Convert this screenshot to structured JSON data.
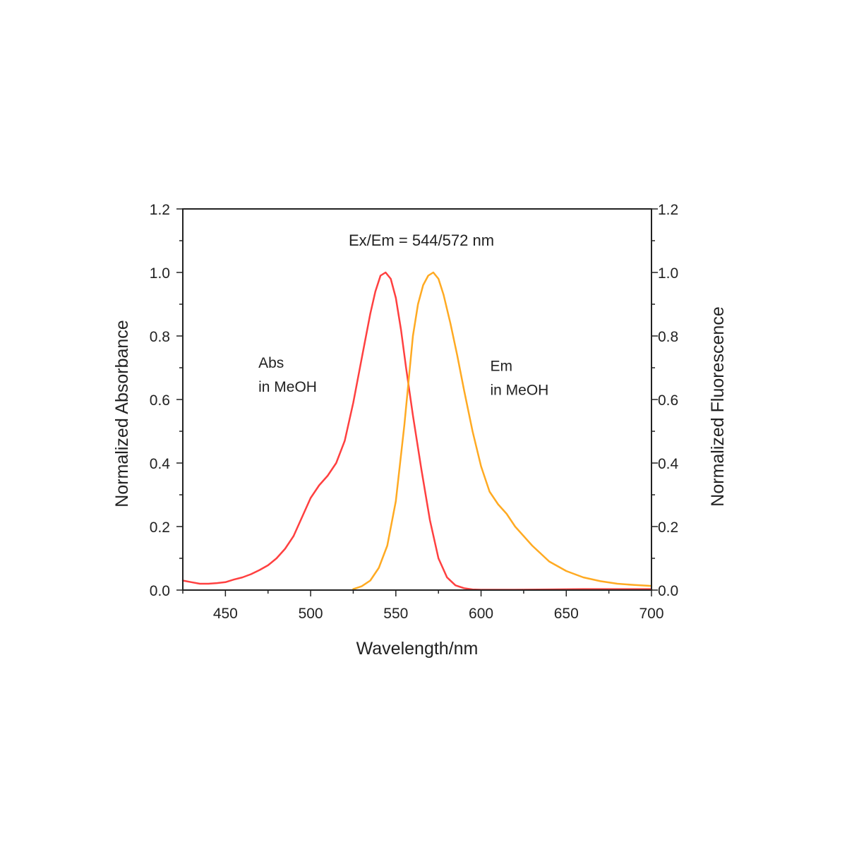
{
  "chart_data": {
    "type": "line",
    "title": "Ex/Em = 544/572 nm",
    "xlabel": "Wavelength/nm",
    "ylabel_left": "Normalized Absorbance",
    "ylabel_right": "Normalized Fluorescence",
    "xlim": [
      425,
      700
    ],
    "ylim": [
      0,
      1.2
    ],
    "x_ticks": [
      450,
      500,
      550,
      600,
      650,
      700
    ],
    "x_tick_labels": [
      "450",
      "500",
      "550",
      "600",
      "650",
      "700"
    ],
    "y_ticks": [
      0,
      0.2,
      0.4,
      0.6,
      0.8,
      1.0,
      1.2
    ],
    "y_tick_labels": [
      "0.0",
      "0.2",
      "0.4",
      "0.6",
      "0.8",
      "1.0",
      "1.2"
    ],
    "grid": false,
    "annotations": [
      {
        "lines": [
          "Abs",
          "in MeOH"
        ],
        "x": 488,
        "y": 0.7
      },
      {
        "lines": [
          "Em",
          "in MeOH"
        ],
        "x": 624,
        "y": 0.69
      }
    ],
    "series": [
      {
        "label": "Abs in MeOH",
        "axis": "left",
        "color": "#ff4040",
        "x": [
          425,
          430,
          435,
          440,
          445,
          450,
          455,
          460,
          465,
          470,
          475,
          480,
          485,
          490,
          495,
          500,
          505,
          510,
          515,
          520,
          525,
          530,
          535,
          538,
          541,
          544,
          547,
          550,
          553,
          556,
          560,
          565,
          570,
          575,
          580,
          585,
          590,
          595,
          600,
          610,
          620,
          640,
          660,
          680,
          700
        ],
        "y": [
          0.03,
          0.025,
          0.02,
          0.02,
          0.022,
          0.025,
          0.033,
          0.04,
          0.05,
          0.063,
          0.078,
          0.1,
          0.13,
          0.17,
          0.23,
          0.29,
          0.33,
          0.36,
          0.4,
          0.47,
          0.59,
          0.73,
          0.87,
          0.94,
          0.99,
          1.0,
          0.98,
          0.92,
          0.82,
          0.7,
          0.55,
          0.38,
          0.22,
          0.1,
          0.04,
          0.015,
          0.006,
          0.002,
          0.001,
          0.001,
          0.001,
          0.002,
          0.003,
          0.003,
          0.003
        ]
      },
      {
        "label": "Em in MeOH",
        "axis": "right",
        "color": "#ffaa22",
        "x": [
          525,
          530,
          535,
          540,
          545,
          550,
          555,
          560,
          563,
          566,
          569,
          572,
          575,
          578,
          582,
          586,
          590,
          595,
          600,
          605,
          610,
          615,
          620,
          630,
          640,
          650,
          660,
          670,
          680,
          690,
          700
        ],
        "y": [
          0.003,
          0.012,
          0.03,
          0.07,
          0.14,
          0.28,
          0.52,
          0.8,
          0.9,
          0.96,
          0.99,
          1.0,
          0.98,
          0.93,
          0.84,
          0.74,
          0.63,
          0.5,
          0.39,
          0.31,
          0.27,
          0.24,
          0.2,
          0.14,
          0.09,
          0.06,
          0.04,
          0.028,
          0.02,
          0.016,
          0.013
        ]
      }
    ]
  }
}
